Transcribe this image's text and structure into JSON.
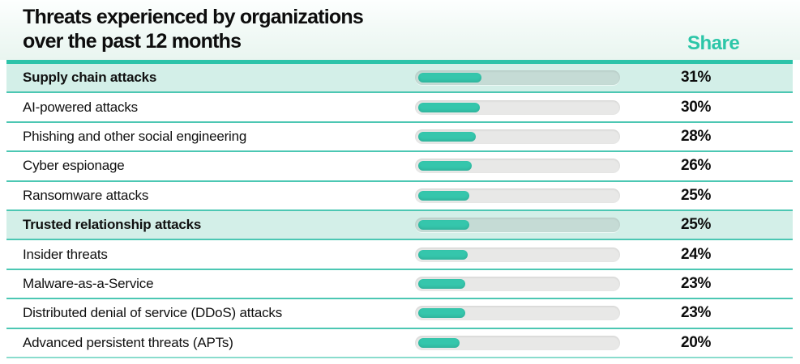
{
  "header": {
    "title_line1": "Threats experienced by organizations",
    "title_line2": "over the past 12 months",
    "share_label": "Share"
  },
  "colors": {
    "accent_teal": "#2CC3A9",
    "bar_fill": "#35C6AC",
    "bar_track": "#E2E2E0",
    "row_highlight": "#D3EFE8",
    "divider": "#4CC7B3",
    "text": "#0D0D0D"
  },
  "chart_data": {
    "type": "bar",
    "orientation": "horizontal",
    "title": "Threats experienced by organizations over the past 12 months",
    "value_column_label": "Share",
    "unit": "%",
    "xlim": [
      0,
      100
    ],
    "grid": false,
    "categories": [
      "Supply chain attacks",
      "AI-powered attacks",
      "Phishing and other social engineering",
      "Cyber espionage",
      "Ransomware attacks",
      "Trusted relationship attacks",
      "Insider threats",
      "Malware-as-a-Service",
      "Distributed denial of service (DDoS) attacks",
      "Advanced persistent threats (APTs)"
    ],
    "values": [
      31,
      30,
      28,
      26,
      25,
      25,
      24,
      23,
      23,
      20
    ],
    "highlighted_categories": [
      "Supply chain attacks",
      "Trusted relationship attacks"
    ],
    "rows": [
      {
        "label": "Supply chain attacks",
        "value": 31,
        "display": "31%",
        "highlighted": true
      },
      {
        "label": "AI-powered attacks",
        "value": 30,
        "display": "30%",
        "highlighted": false
      },
      {
        "label": "Phishing and other social engineering",
        "value": 28,
        "display": "28%",
        "highlighted": false
      },
      {
        "label": "Cyber espionage",
        "value": 26,
        "display": "26%",
        "highlighted": false
      },
      {
        "label": "Ransomware attacks",
        "value": 25,
        "display": "25%",
        "highlighted": false
      },
      {
        "label": "Trusted relationship attacks",
        "value": 25,
        "display": "25%",
        "highlighted": true
      },
      {
        "label": "Insider threats",
        "value": 24,
        "display": "24%",
        "highlighted": false
      },
      {
        "label": "Malware-as-a-Service",
        "value": 23,
        "display": "23%",
        "highlighted": false
      },
      {
        "label": "Distributed denial of service (DDoS) attacks",
        "value": 23,
        "display": "23%",
        "highlighted": false
      },
      {
        "label": "Advanced persistent threats (APTs)",
        "value": 20,
        "display": "20%",
        "highlighted": false
      }
    ]
  }
}
